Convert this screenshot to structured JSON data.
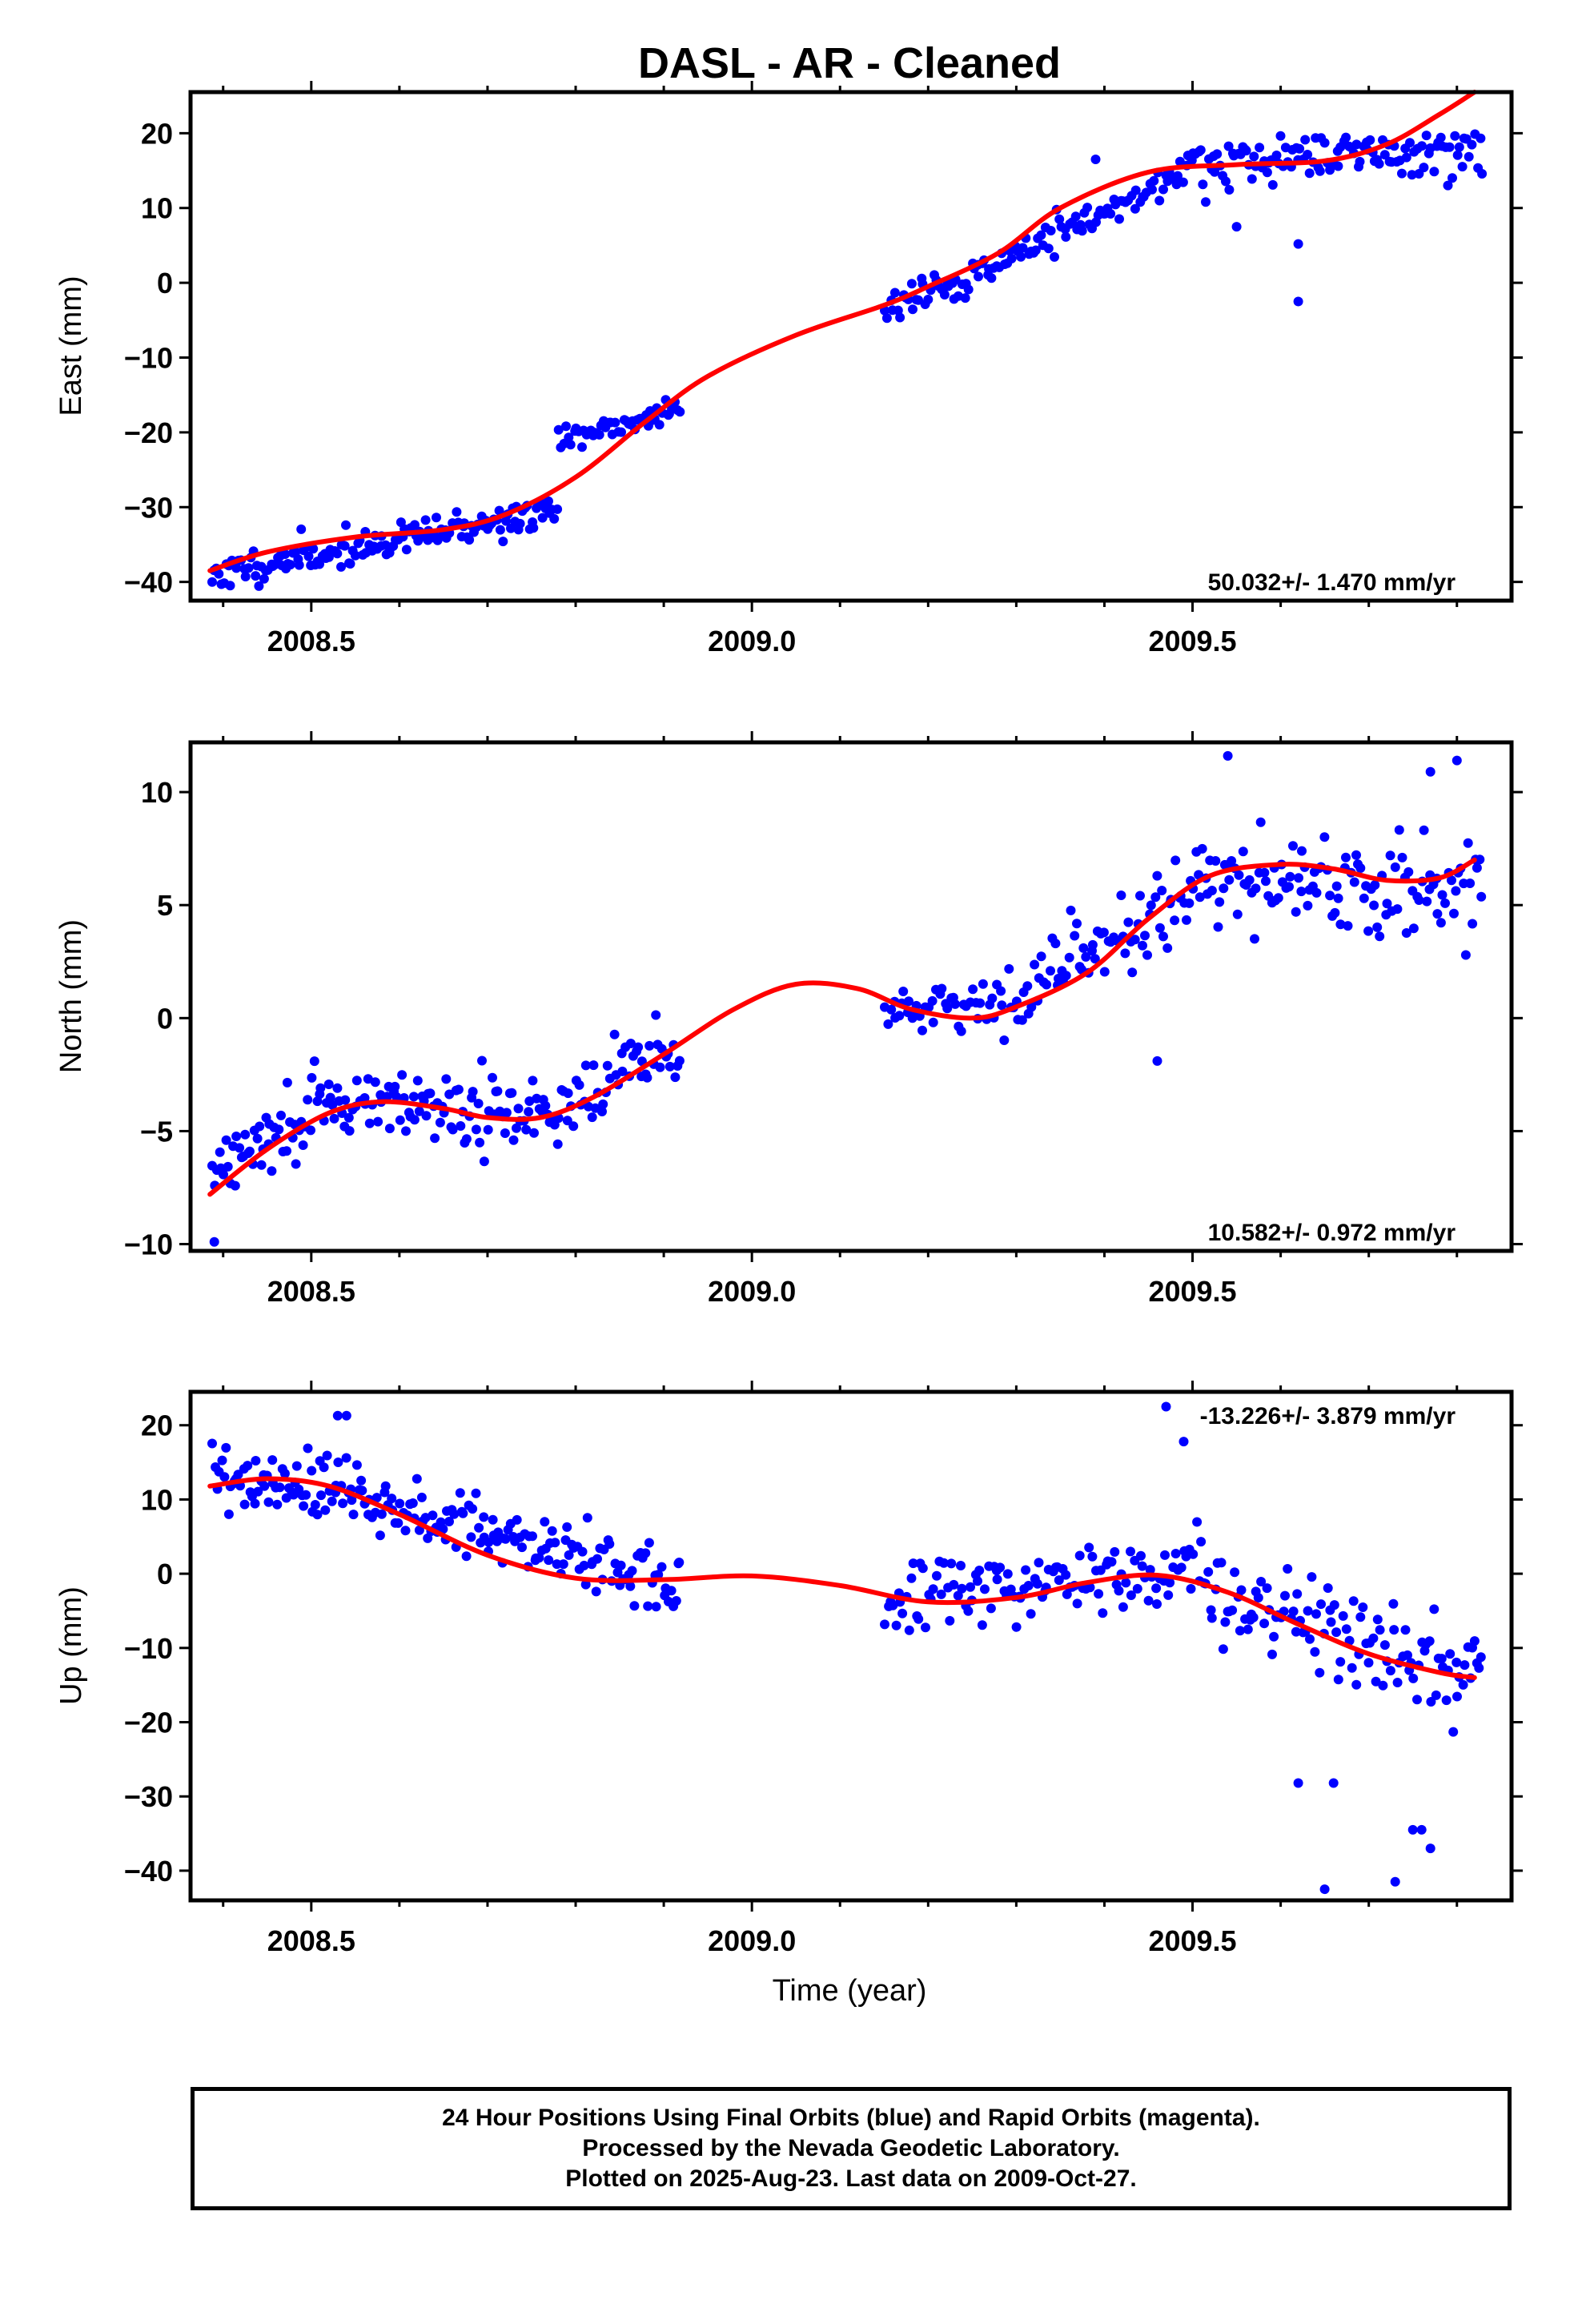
{
  "title": "DASL  - AR - Cleaned",
  "caption": {
    "line1": "24 Hour Positions Using Final Orbits (blue) and Rapid Orbits (magenta).",
    "line2": "Processed by the Nevada Geodetic Laboratory.",
    "line3": "Plotted on 2025-Aug-23. Last data on 2009-Oct-27."
  },
  "colors": {
    "points": "#0000ff",
    "fit": "#ff0000",
    "frame": "#000000"
  },
  "chart_data": [
    {
      "type": "scatter",
      "ylabel": "East (mm)",
      "xlabel": "",
      "xlim": [
        2008.363,
        2009.862
      ],
      "ylim": [
        -42.5,
        25.5
      ],
      "xticks": [
        2008.5,
        2009.0,
        2009.5
      ],
      "xtick_labels": [
        "2008.5",
        "2009.0",
        "2009.5"
      ],
      "yticks": [
        -40,
        -30,
        -20,
        -10,
        0,
        10,
        20
      ],
      "ytick_labels": [
        "−40",
        "−30",
        "−20",
        "−10",
        "0",
        "10",
        "20"
      ],
      "rate_label": "50.032+/- 1.470 mm/yr",
      "rate_position": "bottom-right",
      "fit": {
        "x": [
          2008.385,
          2008.45,
          2008.55,
          2008.65,
          2008.72,
          2008.8,
          2008.88,
          2008.95,
          2009.05,
          2009.15,
          2009.2,
          2009.28,
          2009.35,
          2009.45,
          2009.55,
          2009.65,
          2009.72,
          2009.78,
          2009.82
        ],
        "y": [
          -38.5,
          -36,
          -34,
          -33,
          -31,
          -26,
          -18.5,
          -12.5,
          -7,
          -3,
          -0.5,
          4,
          10,
          14.8,
          15.8,
          16.3,
          18.5,
          22.5,
          25.5
        ]
      },
      "series": [
        {
          "name": "",
          "segments": [
            {
              "x0": 2008.387,
              "x1": 2008.78,
              "start": -39.0,
              "end": -30.5,
              "noise": 1.8,
              "n": 155,
              "seed": 11
            },
            {
              "x0": 2008.78,
              "x1": 2008.92,
              "start": -21.0,
              "end": -17.0,
              "noise": 1.6,
              "n": 50,
              "seed": 12
            },
            {
              "x0": 2009.15,
              "x1": 2009.28,
              "start": -3.5,
              "end": 2.0,
              "noise": 1.7,
              "n": 45,
              "seed": 13
            },
            {
              "x0": 2009.28,
              "x1": 2009.5,
              "start": 3.0,
              "end": 15.5,
              "noise": 1.8,
              "n": 75,
              "seed": 14
            },
            {
              "x0": 2009.5,
              "x1": 2009.83,
              "start": 16.0,
              "end": 18.0,
              "noise": 2.8,
              "n": 120,
              "seed": 15
            }
          ],
          "outliers": [
            {
              "x": 2009.62,
              "y": -2.5
            },
            {
              "x": 2009.62,
              "y": 5.2
            },
            {
              "x": 2009.55,
              "y": 7.5
            },
            {
              "x": 2009.39,
              "y": 16.5
            }
          ]
        }
      ]
    },
    {
      "type": "scatter",
      "ylabel": "North (mm)",
      "xlabel": "",
      "xlim": [
        2008.363,
        2009.862
      ],
      "ylim": [
        -10.3,
        12.2
      ],
      "xticks": [
        2008.5,
        2009.0,
        2009.5
      ],
      "xtick_labels": [
        "2008.5",
        "2009.0",
        "2009.5"
      ],
      "yticks": [
        -10,
        -5,
        0,
        5,
        10
      ],
      "ytick_labels": [
        "−10",
        "−5",
        "0",
        "5",
        "10"
      ],
      "rate_label": "10.582+/- 0.972 mm/yr",
      "rate_position": "bottom-right",
      "fit": {
        "x": [
          2008.385,
          2008.45,
          2008.52,
          2008.58,
          2008.65,
          2008.7,
          2008.76,
          2008.82,
          2008.9,
          2008.98,
          2009.05,
          2009.12,
          2009.18,
          2009.25,
          2009.3,
          2009.38,
          2009.45,
          2009.52,
          2009.6,
          2009.66,
          2009.72,
          2009.78,
          2009.82
        ],
        "y": [
          -7.8,
          -5.8,
          -4.2,
          -3.7,
          -4.0,
          -4.4,
          -4.4,
          -3.5,
          -1.6,
          0.4,
          1.5,
          1.3,
          0.4,
          0.0,
          0.5,
          2.0,
          4.4,
          6.3,
          6.8,
          6.6,
          6.1,
          6.2,
          7.0
        ]
      },
      "series": [
        {
          "name": "",
          "segments": [
            {
              "x0": 2008.387,
              "x1": 2008.5,
              "start": -7.0,
              "end": -4.5,
              "noise": 1.3,
              "n": 45,
              "seed": 21
            },
            {
              "x0": 2008.5,
              "x1": 2008.78,
              "start": -3.5,
              "end": -4.5,
              "noise": 1.2,
              "n": 110,
              "seed": 22
            },
            {
              "x0": 2008.78,
              "x1": 2008.92,
              "start": -3.5,
              "end": -1.0,
              "noise": 1.2,
              "n": 50,
              "seed": 23
            },
            {
              "x0": 2009.15,
              "x1": 2009.32,
              "start": 0.5,
              "end": 0.3,
              "noise": 1.0,
              "n": 55,
              "seed": 24
            },
            {
              "x0": 2009.32,
              "x1": 2009.5,
              "start": 1.5,
              "end": 5.5,
              "noise": 1.4,
              "n": 65,
              "seed": 25
            },
            {
              "x0": 2009.5,
              "x1": 2009.83,
              "start": 6.5,
              "end": 5.5,
              "noise": 1.9,
              "n": 120,
              "seed": 26
            }
          ],
          "outliers": [
            {
              "x": 2008.39,
              "y": -9.9
            },
            {
              "x": 2009.46,
              "y": -1.9
            },
            {
              "x": 2009.54,
              "y": 11.6
            },
            {
              "x": 2009.8,
              "y": 11.4
            },
            {
              "x": 2009.77,
              "y": 10.9
            }
          ]
        }
      ]
    },
    {
      "type": "scatter",
      "ylabel": "Up (mm)",
      "xlabel": "Time (year)",
      "xlim": [
        2008.363,
        2009.862
      ],
      "ylim": [
        -44,
        24.5
      ],
      "xticks": [
        2008.5,
        2009.0,
        2009.5
      ],
      "xtick_labels": [
        "2008.5",
        "2009.0",
        "2009.5"
      ],
      "yticks": [
        -40,
        -30,
        -20,
        -10,
        0,
        10,
        20
      ],
      "ytick_labels": [
        "−40",
        "−30",
        "−20",
        "−10",
        "0",
        "10",
        "20"
      ],
      "rate_label": "-13.226+/- 3.879 mm/yr",
      "rate_position": "top-right",
      "fit": {
        "x": [
          2008.385,
          2008.45,
          2008.52,
          2008.6,
          2008.7,
          2008.8,
          2008.9,
          2009.0,
          2009.1,
          2009.2,
          2009.3,
          2009.38,
          2009.46,
          2009.54,
          2009.62,
          2009.7,
          2009.78,
          2009.82
        ],
        "y": [
          11.8,
          12.8,
          11.8,
          8.0,
          2.5,
          -0.6,
          -0.8,
          -0.3,
          -1.6,
          -3.8,
          -3.2,
          -1.2,
          -0.2,
          -2.5,
          -6.8,
          -10.8,
          -13.3,
          -14.0
        ]
      },
      "series": [
        {
          "name": "",
          "segments": [
            {
              "x0": 2008.387,
              "x1": 2008.56,
              "start": 12.5,
              "end": 11.5,
              "noise": 4.0,
              "n": 70,
              "seed": 31
            },
            {
              "x0": 2008.56,
              "x1": 2008.92,
              "start": 10.0,
              "end": -1.5,
              "noise": 4.0,
              "n": 135,
              "seed": 32
            },
            {
              "x0": 2009.15,
              "x1": 2009.5,
              "start": -3.5,
              "end": 0.5,
              "noise": 4.0,
              "n": 120,
              "seed": 33
            },
            {
              "x0": 2009.5,
              "x1": 2009.83,
              "start": -1.5,
              "end": -14.0,
              "noise": 6.0,
              "n": 120,
              "seed": 34
            }
          ],
          "outliers": [
            {
              "x": 2009.47,
              "y": 22.5
            },
            {
              "x": 2009.65,
              "y": -42.5
            },
            {
              "x": 2009.73,
              "y": -41.5
            },
            {
              "x": 2009.77,
              "y": -37
            },
            {
              "x": 2009.75,
              "y": -34.5
            },
            {
              "x": 2009.76,
              "y": -34.5
            },
            {
              "x": 2009.62,
              "y": -28.2
            },
            {
              "x": 2009.66,
              "y": -28.2
            },
            {
              "x": 2009.49,
              "y": 17.8
            },
            {
              "x": 2008.54,
              "y": 21.3
            },
            {
              "x": 2008.53,
              "y": 21.3
            }
          ]
        }
      ]
    }
  ]
}
